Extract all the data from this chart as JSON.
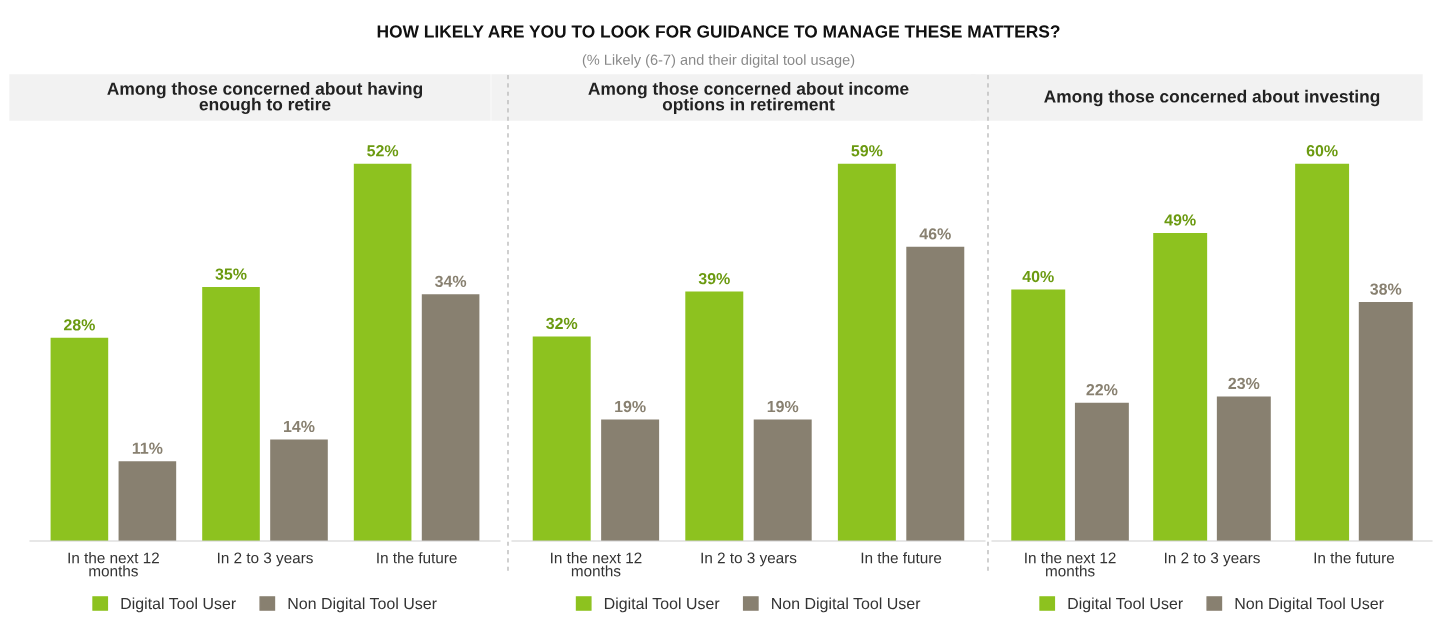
{
  "chart_data": [
    {
      "type": "bar",
      "title": "Among those concerned about having\nenough to retire",
      "annotations": [
        "HOW LIKELY ARE YOU TO LOOK FOR GUIDANCE TO MANAGE THESE MATTERS?",
        "(% Likely (6-7) and their digital tool usage)"
      ],
      "categories": [
        "In the next 12\nmonths",
        "In 2 to 3 years",
        "In the future"
      ],
      "series": [
        {
          "name": "Digital Tool User",
          "color": "#8dc21f",
          "values": [
            28,
            35,
            52
          ],
          "value_labels": [
            "28%",
            "35%",
            "52%"
          ]
        },
        {
          "name": "Non Digital Tool User",
          "color": "#888070",
          "values": [
            11,
            14,
            34
          ],
          "value_labels": [
            "11%",
            "14%",
            "34%"
          ]
        }
      ],
      "tick_labels": "x",
      "legend": "bottom"
    },
    {
      "type": "bar",
      "title": "Among those concerned about income\noptions in retirement",
      "categories": [
        "In the next 12\nmonths",
        "In 2 to 3 years",
        "In the future"
      ],
      "series": [
        {
          "name": "Digital Tool User",
          "color": "#8dc21f",
          "values": [
            32,
            39,
            59
          ],
          "value_labels": [
            "32%",
            "39%",
            "59%"
          ]
        },
        {
          "name": "Non Digital Tool User",
          "color": "#888070",
          "values": [
            19,
            19,
            46
          ],
          "value_labels": [
            "19%",
            "19%",
            "46%"
          ]
        }
      ],
      "tick_labels": "x",
      "legend": "bottom"
    },
    {
      "type": "bar",
      "title": "Among those concerned about investing",
      "categories": [
        "In the next 12\nmonths",
        "In 2 to 3 years",
        "In the future"
      ],
      "series": [
        {
          "name": "Digital Tool User",
          "color": "#8dc21f",
          "values": [
            40,
            49,
            60
          ],
          "value_labels": [
            "40%",
            "49%",
            "60%"
          ]
        },
        {
          "name": "Non Digital Tool User",
          "color": "#888070",
          "values": [
            22,
            23,
            38
          ],
          "value_labels": [
            "22%",
            "23%",
            "38%"
          ]
        }
      ],
      "tick_labels": "x",
      "legend": "bottom"
    }
  ]
}
